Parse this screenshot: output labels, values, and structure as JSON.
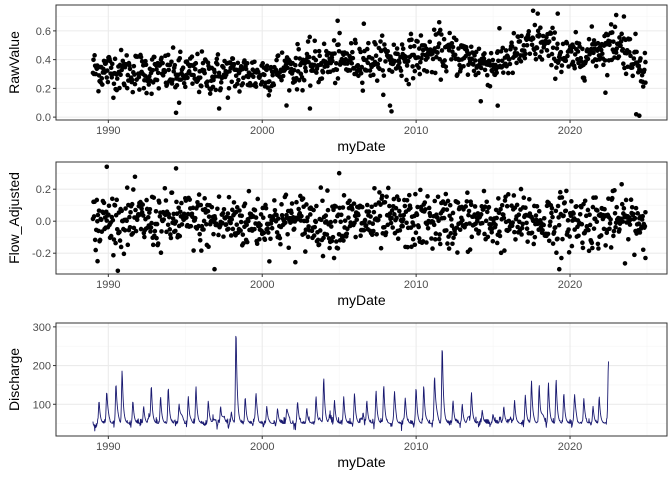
{
  "colors": {
    "point": "#000000",
    "line": "#191970",
    "panel_border": "#333333",
    "grid_major": "#ebebeb",
    "grid_minor": "#f5f5f5",
    "background": "#ffffff"
  },
  "chart_data": [
    {
      "type": "scatter",
      "title": "",
      "xlabel": "myDate",
      "ylabel": "RawValue",
      "xlim": [
        1986.6,
        2026.3
      ],
      "ylim": [
        -0.02,
        0.78
      ],
      "x_ticks": [
        1990,
        2000,
        2010,
        2020
      ],
      "x_tick_labels": [
        "1990",
        "2000",
        "2010",
        "2020"
      ],
      "y_ticks": [
        0.0,
        0.2,
        0.4,
        0.6
      ],
      "y_tick_labels": [
        "0.0",
        "0.2",
        "0.4",
        "0.6"
      ],
      "grid": true,
      "theme": "bw",
      "series": [
        {
          "approx_points": 1000,
          "x_range": [
            1989.0,
            2024.9
          ],
          "trend": [
            [
              1989,
              0.33
            ],
            [
              1995,
              0.3
            ],
            [
              2000,
              0.3
            ],
            [
              2004,
              0.38
            ],
            [
              2008,
              0.4
            ],
            [
              2012,
              0.45
            ],
            [
              2015,
              0.36
            ],
            [
              2018,
              0.52
            ],
            [
              2020,
              0.4
            ],
            [
              2023,
              0.52
            ],
            [
              2025,
              0.34
            ]
          ],
          "spread": 0.09,
          "extremes": [
            {
              "x": 1994.4,
              "y": 0.03
            },
            {
              "x": 1994.6,
              "y": 0.1
            },
            {
              "x": 1997.2,
              "y": 0.06
            },
            {
              "x": 2003.1,
              "y": 0.06
            },
            {
              "x": 2004.9,
              "y": 0.67
            },
            {
              "x": 2006.6,
              "y": 0.65
            },
            {
              "x": 2008.4,
              "y": 0.04
            },
            {
              "x": 2008.3,
              "y": 0.08
            },
            {
              "x": 2011.5,
              "y": 0.66
            },
            {
              "x": 2014.2,
              "y": 0.11
            },
            {
              "x": 2015.3,
              "y": 0.08
            },
            {
              "x": 2017.6,
              "y": 0.74
            },
            {
              "x": 2017.9,
              "y": 0.72
            },
            {
              "x": 2019.2,
              "y": 0.72
            },
            {
              "x": 2022.3,
              "y": 0.17
            },
            {
              "x": 2023.0,
              "y": 0.71
            },
            {
              "x": 2023.5,
              "y": 0.7
            },
            {
              "x": 2024.3,
              "y": 0.02
            },
            {
              "x": 2024.5,
              "y": 0.01
            },
            {
              "x": 2024.9,
              "y": 0.24
            }
          ]
        }
      ]
    },
    {
      "type": "scatter",
      "title": "",
      "xlabel": "myDate",
      "ylabel": "Flow_Adjusted",
      "xlim": [
        1986.6,
        2026.3
      ],
      "ylim": [
        -0.33,
        0.37
      ],
      "x_ticks": [
        1990,
        2000,
        2010,
        2020
      ],
      "x_tick_labels": [
        "1990",
        "2000",
        "2010",
        "2020"
      ],
      "y_ticks": [
        -0.2,
        0.0,
        0.2
      ],
      "y_tick_labels": [
        "-0.2",
        "0.0",
        "0.2"
      ],
      "grid": true,
      "theme": "bw",
      "series": [
        {
          "approx_points": 1000,
          "x_range": [
            1989.0,
            2024.9
          ],
          "center": 0.0,
          "spread": 0.11,
          "extremes": [
            {
              "x": 1989.9,
              "y": 0.34
            },
            {
              "x": 1994.4,
              "y": 0.33
            },
            {
              "x": 1996.9,
              "y": -0.3
            },
            {
              "x": 2005.0,
              "y": 0.3
            },
            {
              "x": 2019.3,
              "y": -0.3
            },
            {
              "x": 1989.3,
              "y": -0.25
            },
            {
              "x": 2024.9,
              "y": -0.23
            }
          ]
        }
      ]
    },
    {
      "type": "line",
      "title": "",
      "xlabel": "myDate",
      "ylabel": "Discharge",
      "xlim": [
        1986.6,
        2026.3
      ],
      "ylim": [
        18,
        310
      ],
      "x_ticks": [
        1990,
        2000,
        2010,
        2020
      ],
      "x_tick_labels": [
        "1990",
        "2000",
        "2010",
        "2020"
      ],
      "y_ticks": [
        100,
        200,
        300
      ],
      "y_tick_labels": [
        "100",
        "200",
        "300"
      ],
      "grid": true,
      "theme": "bw",
      "series": [
        {
          "x_range": [
            1989.0,
            2022.5
          ],
          "baseline": 50,
          "peaks": [
            [
              1989.4,
              110
            ],
            [
              1989.9,
              125
            ],
            [
              1990.5,
              150
            ],
            [
              1990.9,
              190
            ],
            [
              1991.6,
              110
            ],
            [
              1992.3,
              95
            ],
            [
              1992.8,
              140
            ],
            [
              1993.4,
              120
            ],
            [
              1993.9,
              145
            ],
            [
              1994.6,
              100
            ],
            [
              1995.2,
              120
            ],
            [
              1995.7,
              145
            ],
            [
              1996.5,
              110
            ],
            [
              1997.3,
              95
            ],
            [
              1998.0,
              80
            ],
            [
              1998.3,
              295
            ],
            [
              1998.9,
              120
            ],
            [
              1999.6,
              110
            ],
            [
              2000.3,
              95
            ],
            [
              2001.0,
              90
            ],
            [
              2001.6,
              80
            ],
            [
              2002.3,
              100
            ],
            [
              2002.9,
              90
            ],
            [
              2003.5,
              120
            ],
            [
              2004.0,
              170
            ],
            [
              2004.7,
              110
            ],
            [
              2005.3,
              120
            ],
            [
              2006.0,
              130
            ],
            [
              2006.8,
              110
            ],
            [
              2007.4,
              135
            ],
            [
              2007.9,
              150
            ],
            [
              2008.6,
              120
            ],
            [
              2009.3,
              110
            ],
            [
              2010.0,
              145
            ],
            [
              2010.5,
              150
            ],
            [
              2011.2,
              170
            ],
            [
              2011.7,
              255
            ],
            [
              2012.4,
              110
            ],
            [
              2013.0,
              100
            ],
            [
              2013.6,
              130
            ],
            [
              2014.3,
              85
            ],
            [
              2015.0,
              75
            ],
            [
              2015.7,
              95
            ],
            [
              2016.4,
              110
            ],
            [
              2017.1,
              125
            ],
            [
              2017.5,
              160
            ],
            [
              2018.0,
              150
            ],
            [
              2018.6,
              155
            ],
            [
              2019.1,
              165
            ],
            [
              2019.6,
              130
            ],
            [
              2020.3,
              110
            ],
            [
              2020.9,
              110
            ],
            [
              2021.5,
              95
            ],
            [
              2021.9,
              120
            ],
            [
              2022.5,
              205
            ]
          ]
        }
      ]
    }
  ]
}
